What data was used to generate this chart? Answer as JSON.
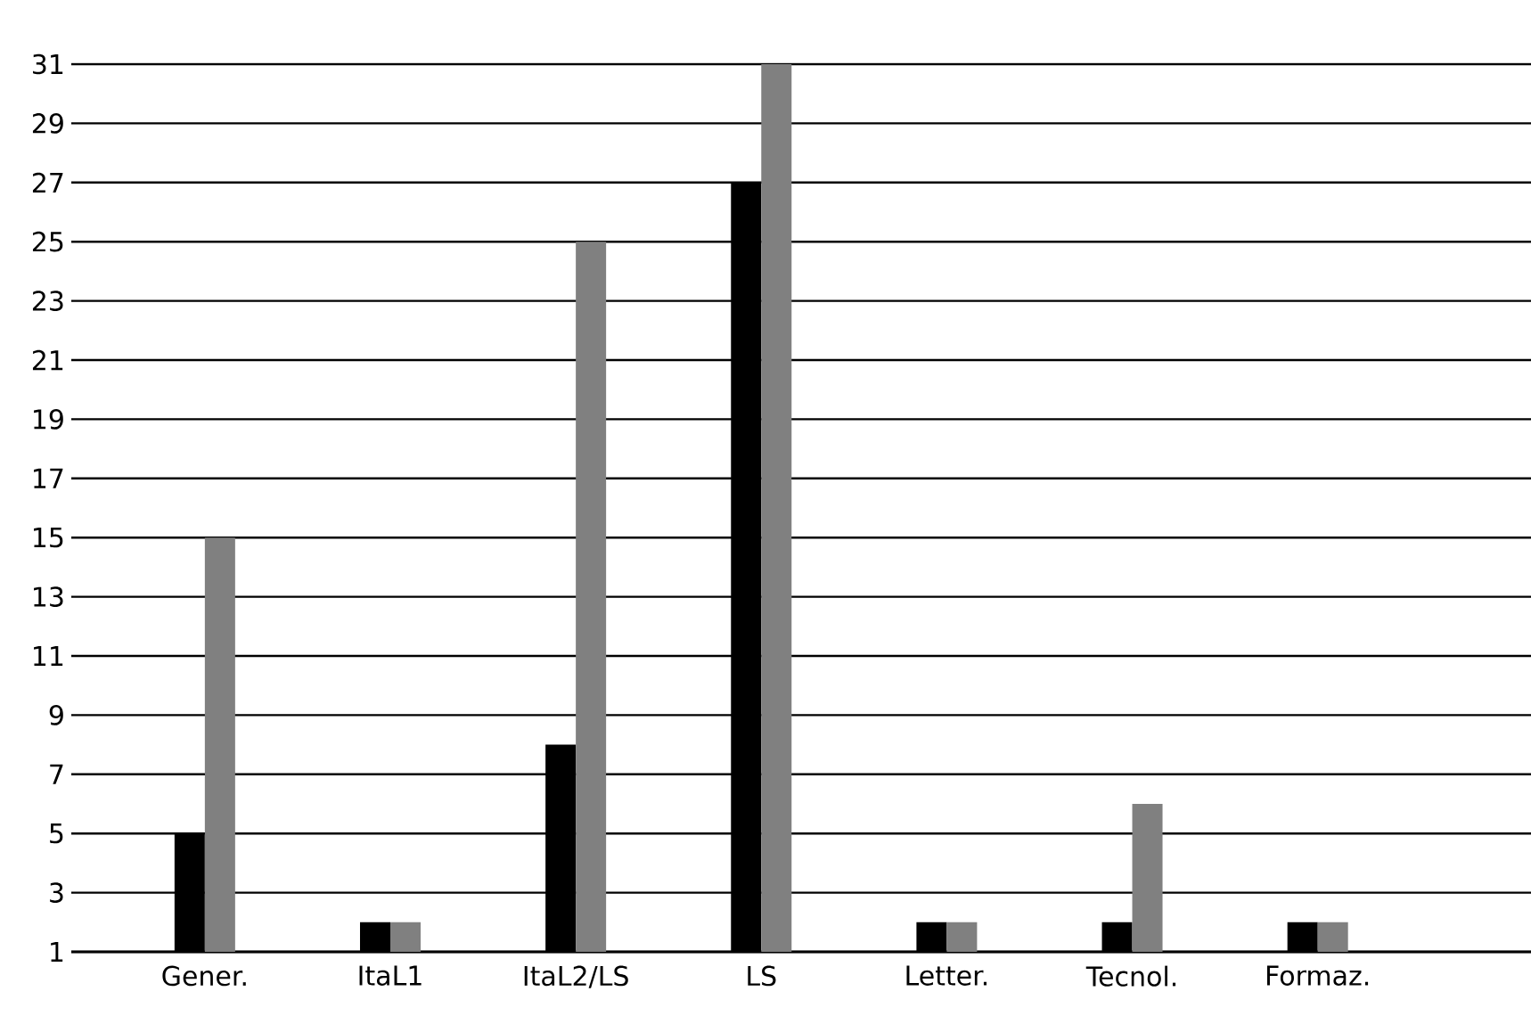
{
  "chart_data": {
    "type": "bar",
    "categories": [
      "Gener.",
      "ItaL1",
      "ItaL2/LS",
      "LS",
      "Letter.",
      "Tecnol.",
      "Formaz."
    ],
    "series": [
      {
        "color": "#000000",
        "values": [
          5,
          2,
          8,
          27,
          2,
          2,
          2
        ]
      },
      {
        "color": "#808080",
        "values": [
          15,
          2,
          25,
          31,
          2,
          6,
          2
        ]
      }
    ],
    "ylim": [
      1,
      31
    ],
    "yticks": [
      1,
      3,
      5,
      7,
      9,
      11,
      13,
      15,
      17,
      19,
      21,
      23,
      25,
      27,
      29,
      31
    ],
    "grid": "y",
    "legend": false
  }
}
